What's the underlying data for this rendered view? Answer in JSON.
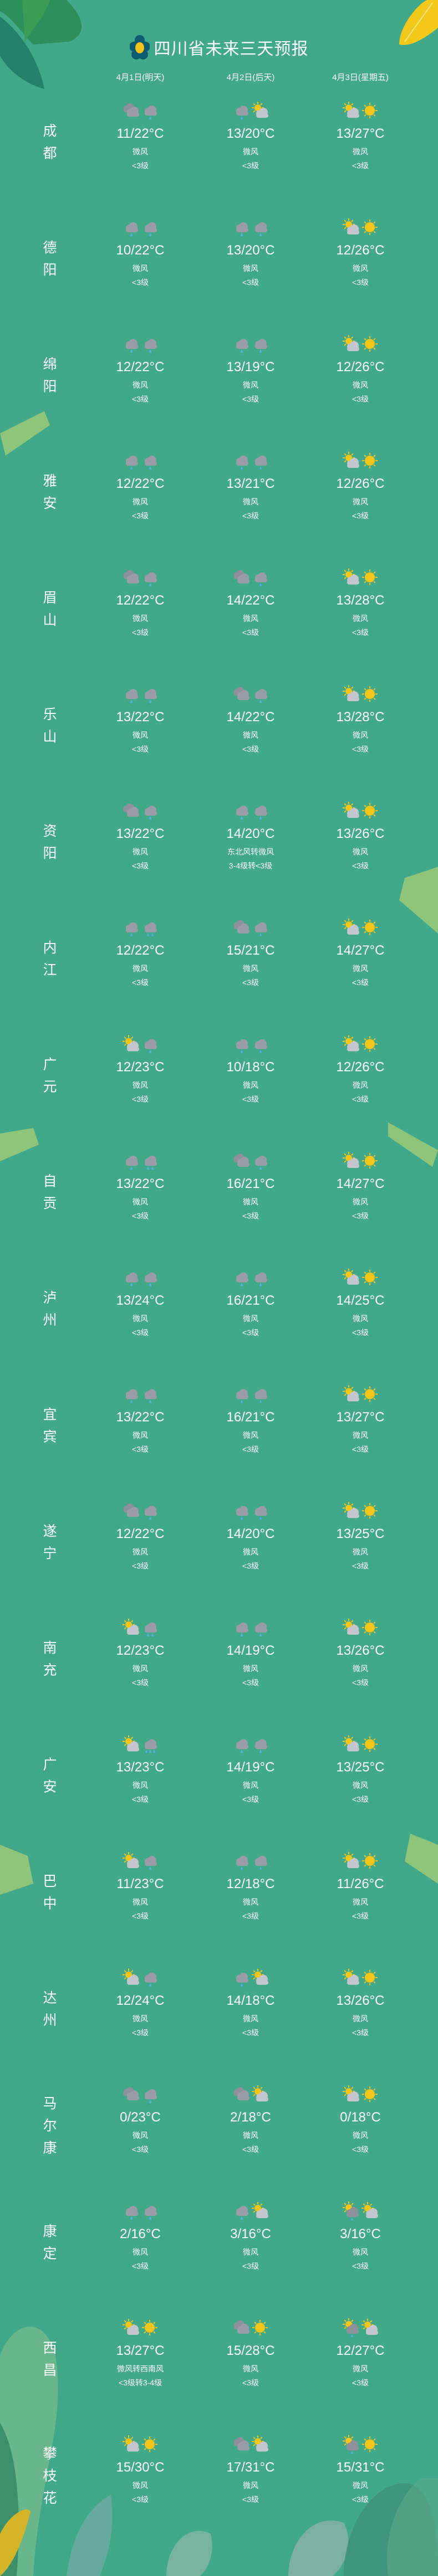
{
  "header": {
    "title": "四川省未来三天预报",
    "logo_icon": "flower-icon"
  },
  "dates": [
    "4月1日(明天)",
    "4月2日(后天)",
    "4月3日(星期五)"
  ],
  "colors": {
    "background": "#42a88a",
    "text": "#ffffff",
    "sun": "#f5c518",
    "cloud": "#9a9ca8",
    "rain": "#4fb3e8"
  },
  "icon_legend": {
    "C": "cloudy-icon",
    "R": "light-rain-icon",
    "R2": "moderate-rain-icon",
    "R3": "heavy-rain-icon",
    "P": "partly-cloudy-icon",
    "S": "sunny-icon",
    "SR": "sun-shower-icon"
  },
  "cities": [
    {
      "name": "成都",
      "days": [
        {
          "icons": [
            "C",
            "R"
          ],
          "temp": "11/22°C",
          "wind": "微风",
          "level": "<3级"
        },
        {
          "icons": [
            "R",
            "P"
          ],
          "temp": "13/20°C",
          "wind": "微风",
          "level": "<3级"
        },
        {
          "icons": [
            "P",
            "S"
          ],
          "temp": "13/27°C",
          "wind": "微风",
          "level": "<3级"
        }
      ]
    },
    {
      "name": "德阳",
      "days": [
        {
          "icons": [
            "R",
            "R"
          ],
          "temp": "10/22°C",
          "wind": "微风",
          "level": "<3级"
        },
        {
          "icons": [
            "R",
            "R"
          ],
          "temp": "13/20°C",
          "wind": "微风",
          "level": "<3级"
        },
        {
          "icons": [
            "P",
            "S"
          ],
          "temp": "12/26°C",
          "wind": "微风",
          "level": "<3级"
        }
      ]
    },
    {
      "name": "绵阳",
      "days": [
        {
          "icons": [
            "R",
            "R"
          ],
          "temp": "12/22°C",
          "wind": "微风",
          "level": "<3级"
        },
        {
          "icons": [
            "R",
            "R"
          ],
          "temp": "13/19°C",
          "wind": "微风",
          "level": "<3级"
        },
        {
          "icons": [
            "P",
            "S"
          ],
          "temp": "12/26°C",
          "wind": "微风",
          "level": "<3级"
        }
      ]
    },
    {
      "name": "雅安",
      "days": [
        {
          "icons": [
            "R",
            "R"
          ],
          "temp": "12/22°C",
          "wind": "微风",
          "level": "<3级"
        },
        {
          "icons": [
            "R",
            "R"
          ],
          "temp": "13/21°C",
          "wind": "微风",
          "level": "<3级"
        },
        {
          "icons": [
            "P",
            "S"
          ],
          "temp": "12/26°C",
          "wind": "微风",
          "level": "<3级"
        }
      ]
    },
    {
      "name": "眉山",
      "days": [
        {
          "icons": [
            "C",
            "R"
          ],
          "temp": "12/22°C",
          "wind": "微风",
          "level": "<3级"
        },
        {
          "icons": [
            "C",
            "R"
          ],
          "temp": "14/22°C",
          "wind": "微风",
          "level": "<3级"
        },
        {
          "icons": [
            "P",
            "S"
          ],
          "temp": "13/28°C",
          "wind": "微风",
          "level": "<3级"
        }
      ]
    },
    {
      "name": "乐山",
      "days": [
        {
          "icons": [
            "R",
            "R"
          ],
          "temp": "13/22°C",
          "wind": "微风",
          "level": "<3级"
        },
        {
          "icons": [
            "C",
            "R"
          ],
          "temp": "14/22°C",
          "wind": "微风",
          "level": "<3级"
        },
        {
          "icons": [
            "P",
            "S"
          ],
          "temp": "13/28°C",
          "wind": "微风",
          "level": "<3级"
        }
      ]
    },
    {
      "name": "资阳",
      "days": [
        {
          "icons": [
            "C",
            "R"
          ],
          "temp": "13/22°C",
          "wind": "微风",
          "level": "<3级"
        },
        {
          "icons": [
            "R",
            "R"
          ],
          "temp": "14/20°C",
          "wind": "东北风转微风",
          "level": "3-4级转<3级"
        },
        {
          "icons": [
            "P",
            "S"
          ],
          "temp": "13/26°C",
          "wind": "微风",
          "level": "<3级"
        }
      ]
    },
    {
      "name": "内江",
      "days": [
        {
          "icons": [
            "R",
            "R2"
          ],
          "temp": "12/22°C",
          "wind": "微风",
          "level": "<3级"
        },
        {
          "icons": [
            "C",
            "R"
          ],
          "temp": "15/21°C",
          "wind": "微风",
          "level": "<3级"
        },
        {
          "icons": [
            "P",
            "S"
          ],
          "temp": "14/27°C",
          "wind": "微风",
          "level": "<3级"
        }
      ]
    },
    {
      "name": "广元",
      "days": [
        {
          "icons": [
            "P",
            "R"
          ],
          "temp": "12/23°C",
          "wind": "微风",
          "level": "<3级"
        },
        {
          "icons": [
            "R",
            "R"
          ],
          "temp": "10/18°C",
          "wind": "微风",
          "level": "<3级"
        },
        {
          "icons": [
            "P",
            "S"
          ],
          "temp": "12/26°C",
          "wind": "微风",
          "level": "<3级"
        }
      ]
    },
    {
      "name": "自贡",
      "days": [
        {
          "icons": [
            "R",
            "R2"
          ],
          "temp": "13/22°C",
          "wind": "微风",
          "level": "<3级"
        },
        {
          "icons": [
            "C",
            "R"
          ],
          "temp": "16/21°C",
          "wind": "微风",
          "level": "<3级"
        },
        {
          "icons": [
            "P",
            "S"
          ],
          "temp": "14/27°C",
          "wind": "微风",
          "level": "<3级"
        }
      ]
    },
    {
      "name": "泸州",
      "days": [
        {
          "icons": [
            "R",
            "R"
          ],
          "temp": "13/24°C",
          "wind": "微风",
          "level": "<3级"
        },
        {
          "icons": [
            "R",
            "R"
          ],
          "temp": "16/21°C",
          "wind": "微风",
          "level": "<3级"
        },
        {
          "icons": [
            "P",
            "S"
          ],
          "temp": "14/25°C",
          "wind": "微风",
          "level": "<3级"
        }
      ]
    },
    {
      "name": "宜宾",
      "days": [
        {
          "icons": [
            "R",
            "R"
          ],
          "temp": "13/22°C",
          "wind": "微风",
          "level": "<3级"
        },
        {
          "icons": [
            "R",
            "R"
          ],
          "temp": "16/21°C",
          "wind": "微风",
          "level": "<3级"
        },
        {
          "icons": [
            "P",
            "S"
          ],
          "temp": "13/27°C",
          "wind": "微风",
          "level": "<3级"
        }
      ]
    },
    {
      "name": "遂宁",
      "days": [
        {
          "icons": [
            "C",
            "R"
          ],
          "temp": "12/22°C",
          "wind": "微风",
          "level": "<3级"
        },
        {
          "icons": [
            "R",
            "R"
          ],
          "temp": "14/20°C",
          "wind": "微风",
          "level": "<3级"
        },
        {
          "icons": [
            "P",
            "S"
          ],
          "temp": "13/25°C",
          "wind": "微风",
          "level": "<3级"
        }
      ]
    },
    {
      "name": "南充",
      "days": [
        {
          "icons": [
            "P",
            "R2"
          ],
          "temp": "12/23°C",
          "wind": "微风",
          "level": "<3级"
        },
        {
          "icons": [
            "R",
            "R"
          ],
          "temp": "14/19°C",
          "wind": "微风",
          "level": "<3级"
        },
        {
          "icons": [
            "P",
            "S"
          ],
          "temp": "13/26°C",
          "wind": "微风",
          "level": "<3级"
        }
      ]
    },
    {
      "name": "广安",
      "days": [
        {
          "icons": [
            "P",
            "R3"
          ],
          "temp": "13/23°C",
          "wind": "微风",
          "level": "<3级"
        },
        {
          "icons": [
            "R",
            "R"
          ],
          "temp": "14/19°C",
          "wind": "微风",
          "level": "<3级"
        },
        {
          "icons": [
            "P",
            "S"
          ],
          "temp": "13/25°C",
          "wind": "微风",
          "level": "<3级"
        }
      ]
    },
    {
      "name": "巴中",
      "days": [
        {
          "icons": [
            "P",
            "R"
          ],
          "temp": "11/23°C",
          "wind": "微风",
          "level": "<3级"
        },
        {
          "icons": [
            "R",
            "R"
          ],
          "temp": "12/18°C",
          "wind": "微风",
          "level": "<3级"
        },
        {
          "icons": [
            "P",
            "S"
          ],
          "temp": "11/26°C",
          "wind": "微风",
          "level": "<3级"
        }
      ]
    },
    {
      "name": "达州",
      "days": [
        {
          "icons": [
            "P",
            "R"
          ],
          "temp": "12/24°C",
          "wind": "微风",
          "level": "<3级"
        },
        {
          "icons": [
            "R",
            "P"
          ],
          "temp": "14/18°C",
          "wind": "微风",
          "level": "<3级"
        },
        {
          "icons": [
            "P",
            "S"
          ],
          "temp": "13/26°C",
          "wind": "微风",
          "level": "<3级"
        }
      ]
    },
    {
      "name": "马尔康",
      "days": [
        {
          "icons": [
            "C",
            "R"
          ],
          "temp": "0/23°C",
          "wind": "微风",
          "level": "<3级"
        },
        {
          "icons": [
            "C",
            "P"
          ],
          "temp": "2/18°C",
          "wind": "微风",
          "level": "<3级"
        },
        {
          "icons": [
            "P",
            "S"
          ],
          "temp": "0/18°C",
          "wind": "微风",
          "level": "<3级"
        }
      ]
    },
    {
      "name": "康定",
      "days": [
        {
          "icons": [
            "R",
            "R"
          ],
          "temp": "2/16°C",
          "wind": "微风",
          "level": "<3级"
        },
        {
          "icons": [
            "R",
            "P"
          ],
          "temp": "3/16°C",
          "wind": "微风",
          "level": "<3级"
        },
        {
          "icons": [
            "SR",
            "P"
          ],
          "temp": "3/16°C",
          "wind": "微风",
          "level": "<3级"
        }
      ]
    },
    {
      "name": "西昌",
      "days": [
        {
          "icons": [
            "P",
            "S"
          ],
          "temp": "13/27°C",
          "wind": "微风转西南风",
          "level": "<3级转3-4级"
        },
        {
          "icons": [
            "C",
            "S"
          ],
          "temp": "15/28°C",
          "wind": "微风",
          "level": "<3级"
        },
        {
          "icons": [
            "SR",
            "P"
          ],
          "temp": "12/27°C",
          "wind": "微风",
          "level": "<3级"
        }
      ]
    },
    {
      "name": "攀枝花",
      "days": [
        {
          "icons": [
            "P",
            "S"
          ],
          "temp": "15/30°C",
          "wind": "微风",
          "level": "<3级"
        },
        {
          "icons": [
            "C",
            "P"
          ],
          "temp": "17/31°C",
          "wind": "微风",
          "level": "<3级"
        },
        {
          "icons": [
            "SR",
            "S"
          ],
          "temp": "15/31°C",
          "wind": "微风",
          "level": "<3级"
        }
      ]
    }
  ]
}
